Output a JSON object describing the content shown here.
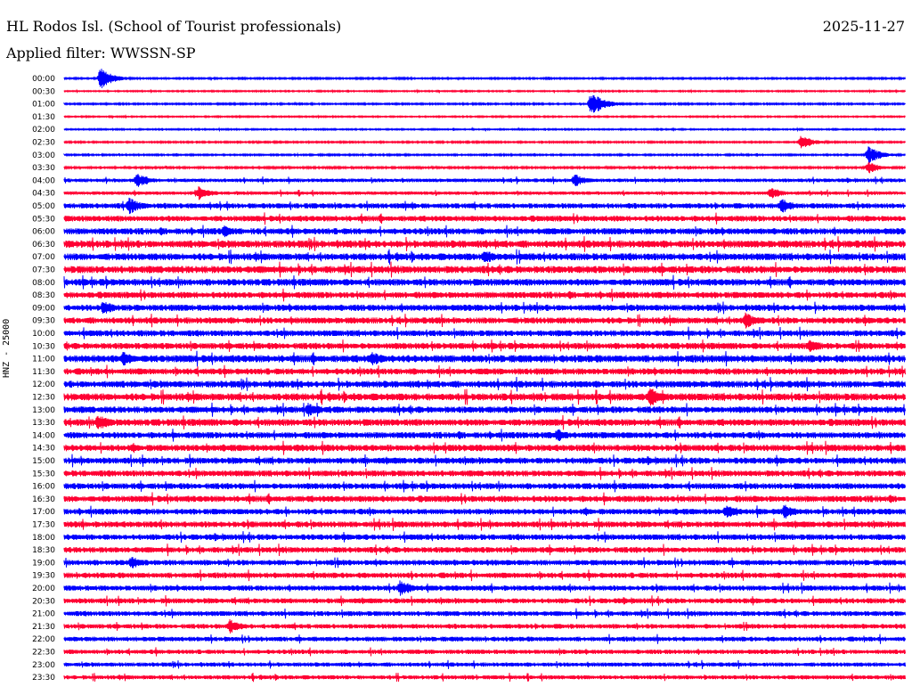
{
  "header": {
    "title": "HL Rodos Isl. (School of Tourist professionals)",
    "date": "2025-11-27",
    "filter_label": "Applied filter: WWSSN-SP"
  },
  "chart_data": {
    "type": "line",
    "title": "HL Rodos Isl. (School of Tourist professionals)",
    "ylabel": "HNZ - 25000",
    "filter": "WWSSN-SP",
    "date": "2025-11-27",
    "row_labels": [
      "00:00",
      "00:30",
      "01:00",
      "01:30",
      "02:00",
      "02:30",
      "03:00",
      "03:30",
      "04:00",
      "04:30",
      "05:00",
      "05:30",
      "06:00",
      "06:30",
      "07:00",
      "07:30",
      "08:00",
      "08:30",
      "09:00",
      "09:30",
      "10:00",
      "10:30",
      "11:00",
      "11:30",
      "12:00",
      "12:30",
      "13:00",
      "13:30",
      "14:00",
      "14:30",
      "15:00",
      "15:30",
      "16:00",
      "16:30",
      "17:00",
      "17:30",
      "18:00",
      "18:30",
      "19:00",
      "19:30",
      "20:00",
      "20:30",
      "21:00",
      "21:30",
      "22:00",
      "22:30",
      "23:00",
      "23:30"
    ],
    "row_colors": [
      "#0000ff",
      "#ff0033"
    ],
    "row_minutes": 30,
    "noise_level": [
      0.6,
      0.5,
      0.6,
      0.5,
      0.5,
      0.6,
      0.6,
      0.7,
      1.4,
      1.3,
      2.0,
      2.2,
      2.4,
      2.8,
      2.7,
      2.8,
      2.6,
      2.4,
      2.4,
      2.4,
      2.3,
      2.4,
      2.8,
      2.4,
      2.6,
      2.8,
      2.5,
      2.6,
      2.4,
      2.5,
      2.4,
      2.3,
      2.3,
      2.4,
      2.2,
      2.3,
      2.2,
      2.2,
      2.1,
      2.1,
      2.0,
      2.0,
      1.9,
      1.8,
      1.8,
      1.7,
      1.6,
      1.6
    ],
    "events": [
      {
        "row": 0,
        "minute": 1.3,
        "amplitude": 12
      },
      {
        "row": 2,
        "minute": 18.8,
        "amplitude": 14
      },
      {
        "row": 5,
        "minute": 26.3,
        "amplitude": 8
      },
      {
        "row": 6,
        "minute": 28.7,
        "amplitude": 10
      },
      {
        "row": 7,
        "minute": 28.7,
        "amplitude": 7
      },
      {
        "row": 8,
        "minute": 2.6,
        "amplitude": 9
      },
      {
        "row": 8,
        "minute": 18.2,
        "amplitude": 8
      },
      {
        "row": 9,
        "minute": 4.8,
        "amplitude": 8
      },
      {
        "row": 9,
        "minute": 25.2,
        "amplitude": 7
      },
      {
        "row": 10,
        "minute": 2.3,
        "amplitude": 10
      },
      {
        "row": 10,
        "minute": 25.6,
        "amplitude": 9
      },
      {
        "row": 12,
        "minute": 5.7,
        "amplitude": 7
      },
      {
        "row": 14,
        "minute": 15.0,
        "amplitude": 9
      },
      {
        "row": 18,
        "minute": 1.4,
        "amplitude": 9
      },
      {
        "row": 19,
        "minute": 24.3,
        "amplitude": 10
      },
      {
        "row": 21,
        "minute": 26.6,
        "amplitude": 9
      },
      {
        "row": 22,
        "minute": 2.1,
        "amplitude": 9
      },
      {
        "row": 22,
        "minute": 11.0,
        "amplitude": 9
      },
      {
        "row": 25,
        "minute": 20.9,
        "amplitude": 12
      },
      {
        "row": 26,
        "minute": 8.7,
        "amplitude": 9
      },
      {
        "row": 27,
        "minute": 1.2,
        "amplitude": 10
      },
      {
        "row": 28,
        "minute": 17.6,
        "amplitude": 8
      },
      {
        "row": 34,
        "minute": 25.7,
        "amplitude": 9
      },
      {
        "row": 34,
        "minute": 23.6,
        "amplitude": 8
      },
      {
        "row": 38,
        "minute": 2.4,
        "amplitude": 8
      },
      {
        "row": 40,
        "minute": 12.0,
        "amplitude": 10
      },
      {
        "row": 43,
        "minute": 5.9,
        "amplitude": 9
      }
    ]
  }
}
